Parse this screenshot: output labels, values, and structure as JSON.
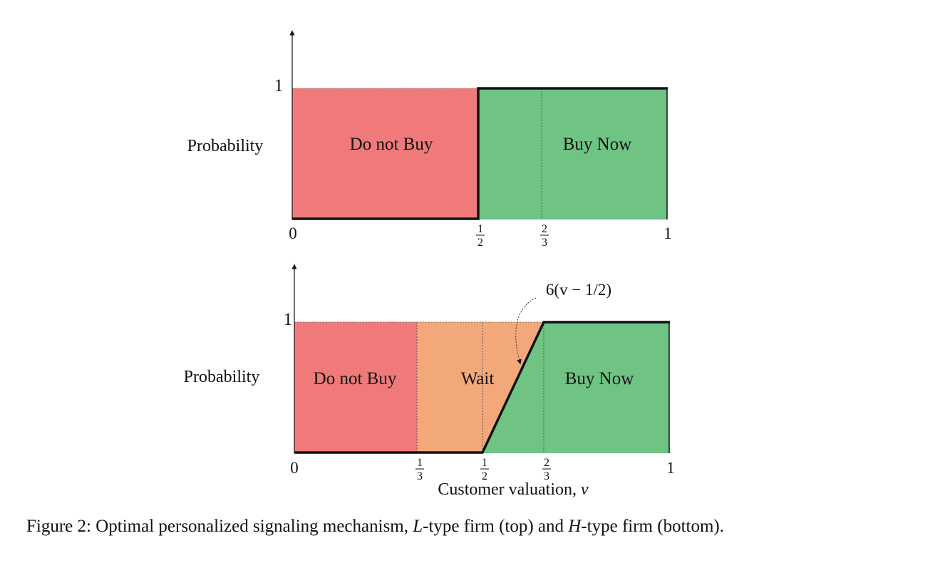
{
  "top_panel": {
    "ylabel": "Probability",
    "y_tick": "1",
    "x_ticks": {
      "zero": "0",
      "half_num": "1",
      "half_den": "2",
      "twothirds_num": "2",
      "twothirds_den": "3",
      "one": "1"
    },
    "regions": {
      "do_not_buy": "Do not Buy",
      "buy_now": "Buy Now"
    }
  },
  "bottom_panel": {
    "ylabel": "Probability",
    "y_tick": "1",
    "x_ticks": {
      "zero": "0",
      "third_num": "1",
      "third_den": "3",
      "half_num": "1",
      "half_den": "2",
      "twothirds_num": "2",
      "twothirds_den": "3",
      "one": "1"
    },
    "regions": {
      "do_not_buy": "Do not Buy",
      "wait": "Wait",
      "buy_now": "Buy Now"
    },
    "annotation": "6(v − 1/2)",
    "xlabel_text": "Customer valuation, ",
    "xlabel_var": "v"
  },
  "caption": {
    "prefix": "Figure 2: Optimal personalized signaling mechanism, ",
    "l_type": "L",
    "middle": "-type firm (top) and ",
    "h_type": "H",
    "suffix": "-type firm (bottom)."
  },
  "colors": {
    "red": "#F07A7A",
    "orange": "#F3A87A",
    "green": "#6FC383",
    "line": "#111111"
  }
}
